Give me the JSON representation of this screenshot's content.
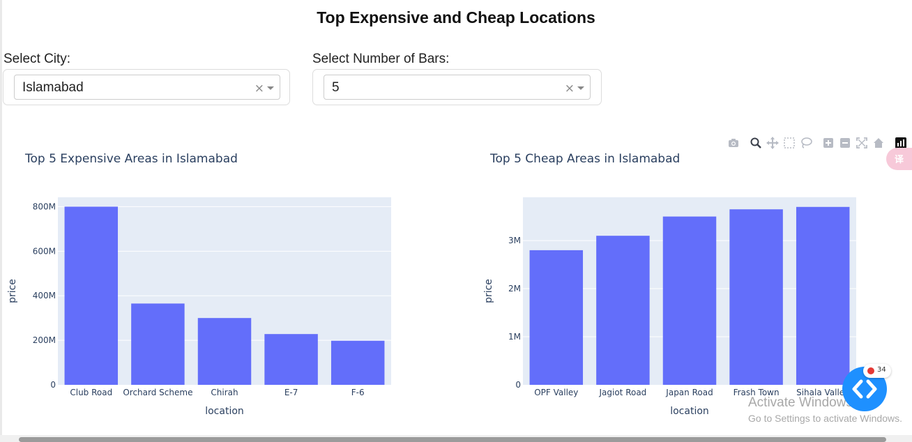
{
  "page": {
    "title": "Top Expensive and Cheap Locations"
  },
  "controls": {
    "city": {
      "label": "Select City:",
      "value": "Islamabad",
      "clear": "×"
    },
    "bars": {
      "label": "Select Number of Bars:",
      "value": "5",
      "clear": "×"
    }
  },
  "modebar": {
    "icons": [
      "camera-icon",
      "zoom-icon",
      "pan-icon",
      "box-select-icon",
      "lasso-icon",
      "zoom-in-icon",
      "zoom-out-icon",
      "autoscale-icon",
      "reset-axes-icon",
      "plotly-logo-icon"
    ]
  },
  "translate_button": {
    "icon": "translate-icon",
    "text": "译"
  },
  "chart_data": [
    {
      "type": "bar",
      "title": "Top 5 Expensive Areas in Islamabad",
      "xlabel": "location",
      "ylabel": "price",
      "categories": [
        "Club Road",
        "Orchard Scheme",
        "Chirah",
        "E-7",
        "F-6"
      ],
      "values": [
        800000000,
        365000000,
        300000000,
        228000000,
        198000000
      ],
      "ylim": [
        0,
        842000000
      ],
      "yticks": [
        0,
        200000000,
        400000000,
        600000000,
        800000000
      ],
      "yticklabels": [
        "0",
        "200M",
        "400M",
        "600M",
        "800M"
      ],
      "grid": true,
      "bar_color": "#636efa",
      "plot_bg": "#e5ecf6"
    },
    {
      "type": "bar",
      "title": "Top 5 Cheap Areas in Islamabad",
      "xlabel": "location",
      "ylabel": "price",
      "categories": [
        "OPF Valley",
        "Jagiot Road",
        "Japan Road",
        "Frash Town",
        "Sihala Valley"
      ],
      "values": [
        2800000,
        3100000,
        3500000,
        3650000,
        3700000
      ],
      "ylim": [
        0,
        3900000
      ],
      "yticks": [
        0,
        1000000,
        2000000,
        3000000
      ],
      "yticklabels": [
        "0",
        "1M",
        "2M",
        "3M"
      ],
      "grid": true,
      "bar_color": "#636efa",
      "plot_bg": "#e5ecf6"
    }
  ],
  "fab": {
    "icon": "code-icon",
    "badge_count": "34"
  },
  "watermark": {
    "title": "Activate Windows",
    "subtitle": "Go to Settings to activate Windows."
  },
  "colors": {
    "accent": "#636efa",
    "fab": "#1e90ff"
  }
}
